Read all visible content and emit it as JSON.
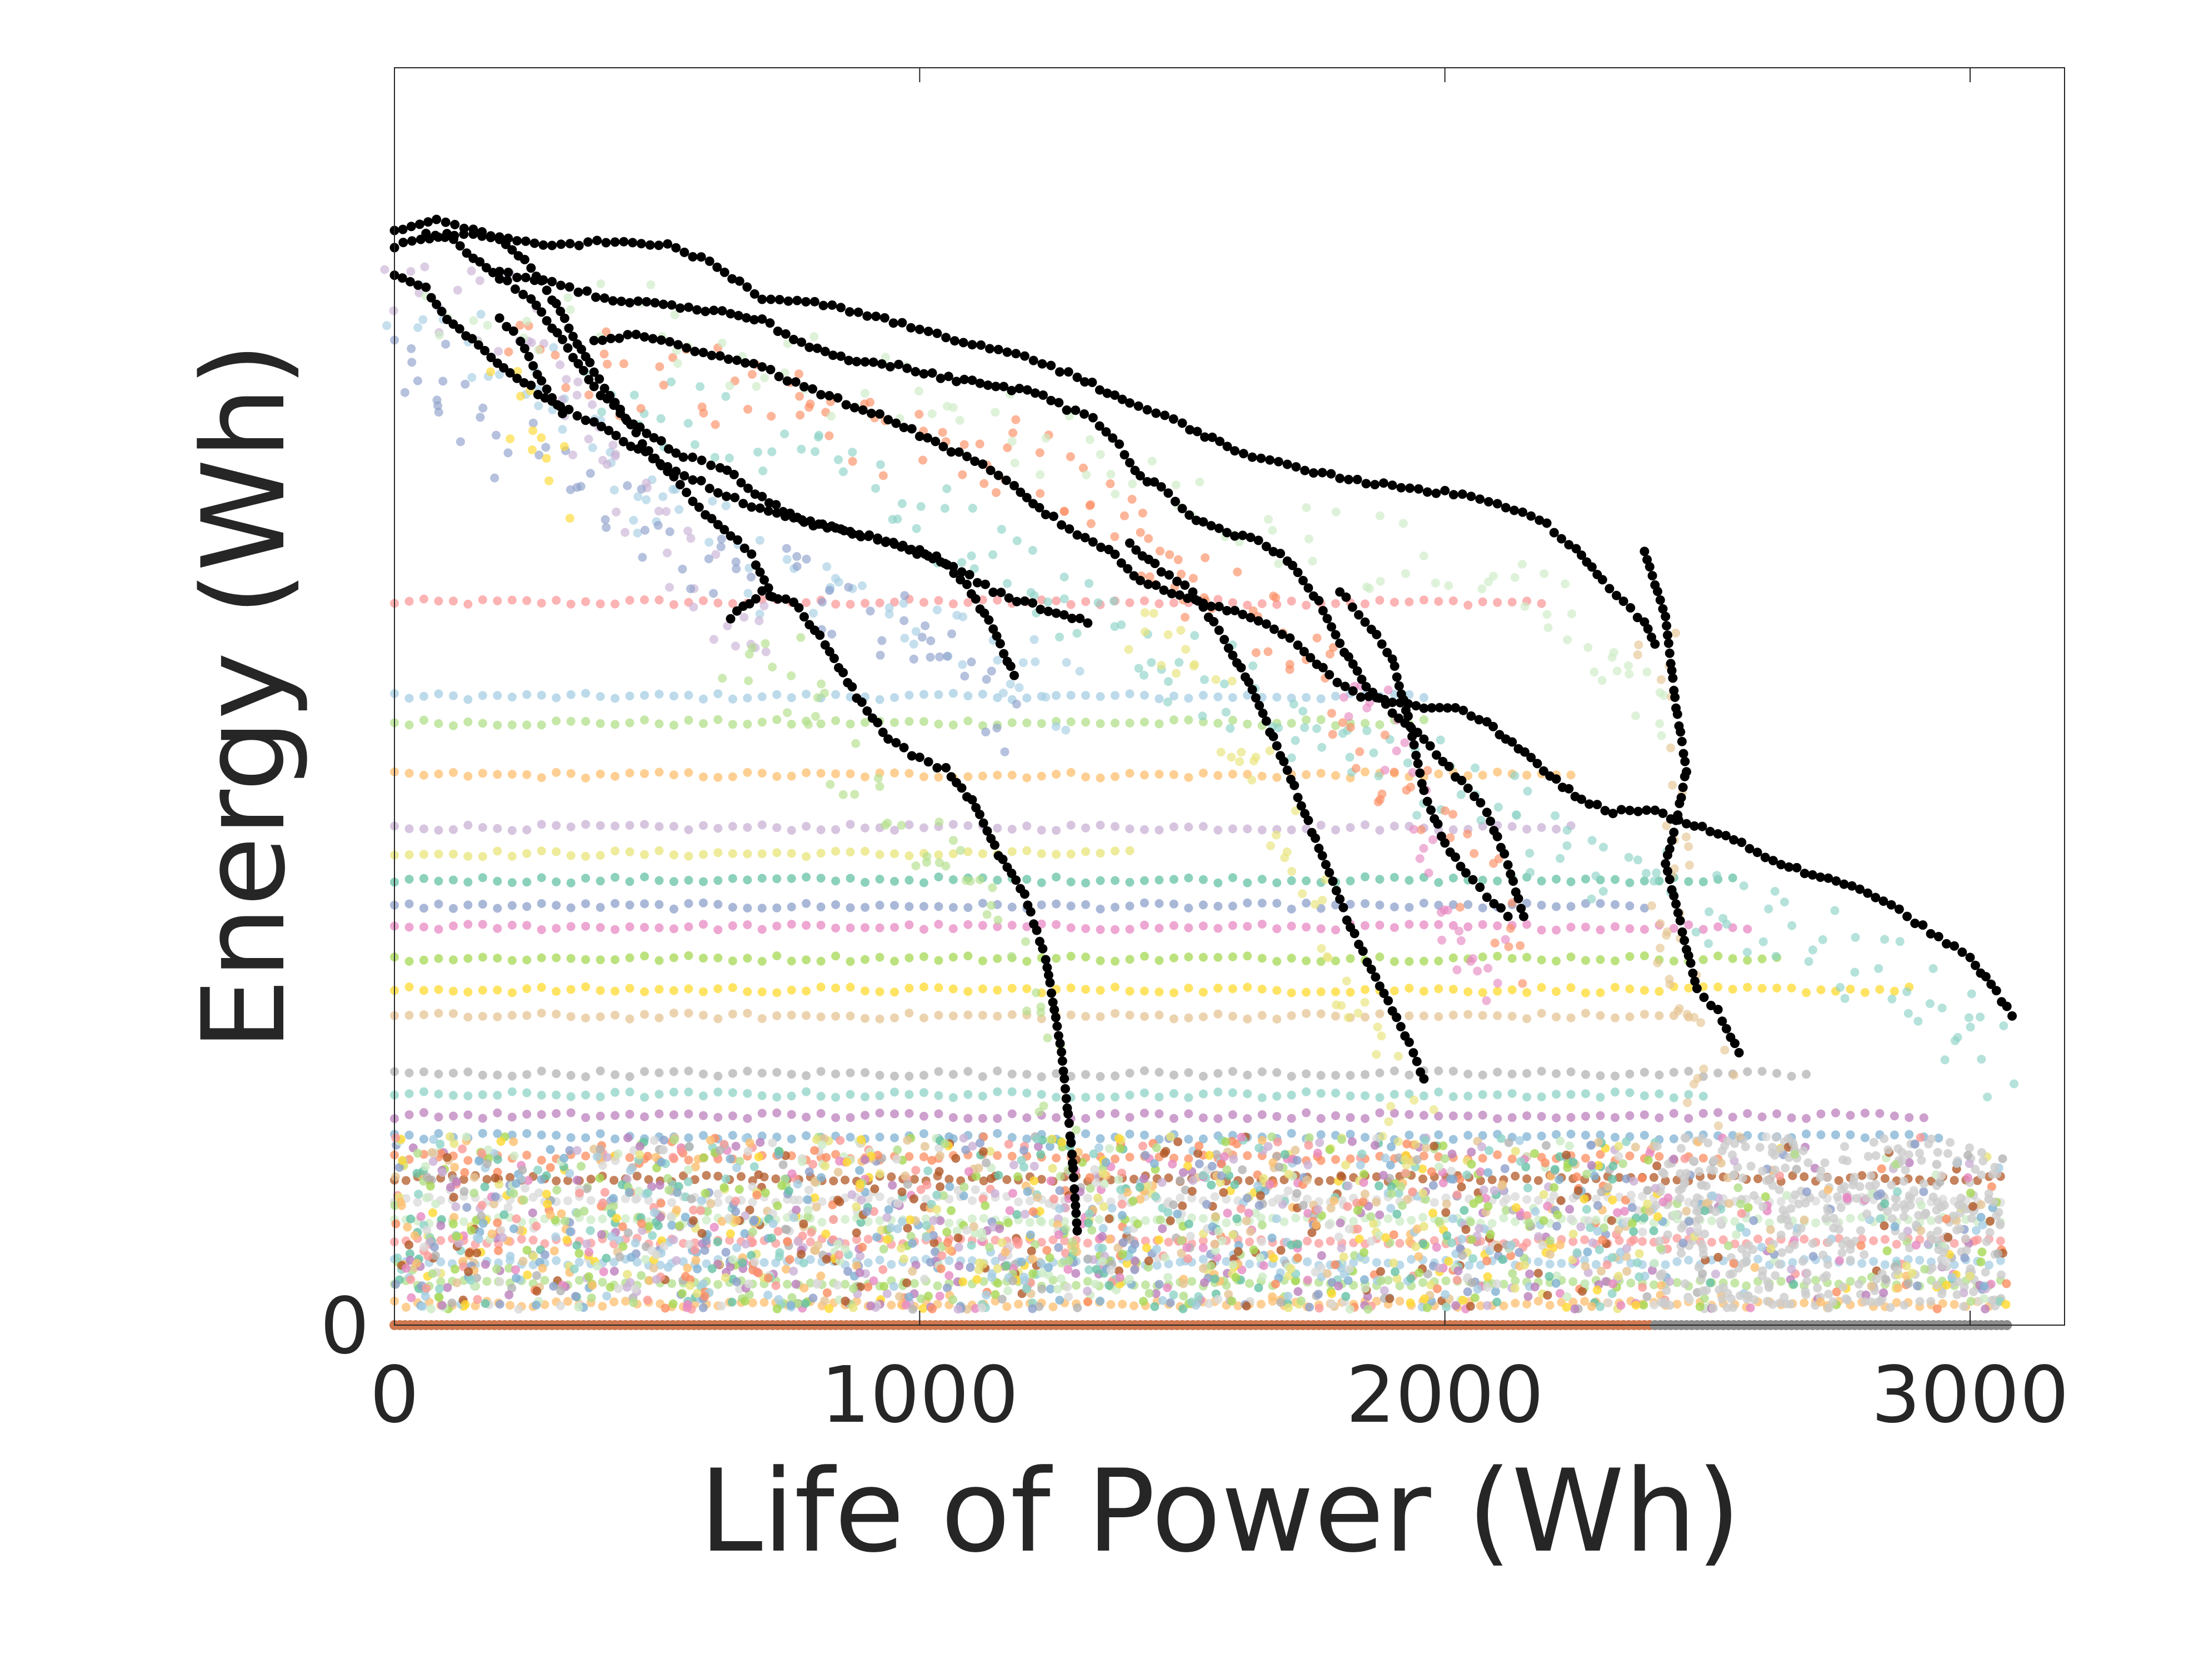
{
  "chart_data": {
    "type": "scatter",
    "title": "",
    "xlabel": "Life of Power  (Wh)",
    "ylabel": "Energy (Wh)",
    "xlim": [
      0,
      3200
    ],
    "ylim": [
      0,
      2400
    ],
    "x_ticks": [
      {
        "value": 0,
        "label": "0"
      },
      {
        "value": 1000,
        "label": "1000"
      },
      {
        "value": 2000,
        "label": "2000"
      },
      {
        "value": 3000,
        "label": "3000"
      }
    ],
    "y_ticks": [
      {
        "value": 0,
        "label": "0"
      }
    ],
    "grid": false,
    "legend": "none",
    "colors": {
      "frame": "#262626",
      "highlight": "#000000",
      "baseline_orange": "#d07850",
      "baseline_gray": "#8c8c8c",
      "palette": [
        "#fb9a99",
        "#a6cee3",
        "#b2df8a",
        "#fdbf6f",
        "#cab2d6",
        "#e8e47a",
        "#66c2a5",
        "#8da0cb",
        "#e78ac3",
        "#a6d854",
        "#ffd92f",
        "#e5c494",
        "#b3b3b3",
        "#8dd3c7",
        "#bc80bd",
        "#80b1d3",
        "#fc8d62",
        "#b15928",
        "#d9d9d9",
        "#ccebc5"
      ]
    },
    "highlighted_series": [
      {
        "name": "degradation-curve-1",
        "points": [
          [
            0,
            2060
          ],
          [
            100,
            2080
          ],
          [
            200,
            2000
          ],
          [
            260,
            1960
          ],
          [
            320,
            1880
          ],
          [
            380,
            1790
          ],
          [
            430,
            1740
          ],
          [
            480,
            1700
          ],
          [
            550,
            1660
          ],
          [
            620,
            1640
          ],
          [
            700,
            1580
          ],
          [
            780,
            1530
          ],
          [
            850,
            1520
          ],
          [
            920,
            1500
          ],
          [
            1000,
            1480
          ],
          [
            1080,
            1440
          ],
          [
            1140,
            1400
          ],
          [
            1200,
            1380
          ],
          [
            1260,
            1360
          ],
          [
            1320,
            1340
          ]
        ]
      },
      {
        "name": "degradation-curve-2",
        "points": [
          [
            0,
            2090
          ],
          [
            80,
            2110
          ],
          [
            150,
            2090
          ],
          [
            200,
            2070
          ],
          [
            260,
            2020
          ],
          [
            300,
            1960
          ],
          [
            340,
            1890
          ],
          [
            380,
            1820
          ],
          [
            420,
            1760
          ],
          [
            460,
            1700
          ],
          [
            520,
            1630
          ],
          [
            580,
            1560
          ],
          [
            640,
            1510
          ],
          [
            680,
            1470
          ],
          [
            720,
            1390
          ]
        ]
      },
      {
        "name": "degradation-curve-3",
        "points": [
          [
            0,
            2000
          ],
          [
            60,
            1980
          ],
          [
            100,
            1920
          ],
          [
            160,
            1870
          ],
          [
            220,
            1820
          ],
          [
            300,
            1760
          ],
          [
            380,
            1720
          ],
          [
            450,
            1680
          ],
          [
            520,
            1640
          ],
          [
            600,
            1600
          ],
          [
            680,
            1560
          ],
          [
            760,
            1540
          ],
          [
            840,
            1520
          ],
          [
            920,
            1500
          ],
          [
            980,
            1480
          ],
          [
            1040,
            1460
          ],
          [
            1090,
            1410
          ],
          [
            1140,
            1330
          ],
          [
            1180,
            1240
          ]
        ]
      },
      {
        "name": "degradation-curve-4",
        "points": [
          [
            200,
            1920
          ],
          [
            240,
            1880
          ],
          [
            280,
            1800
          ],
          [
            320,
            1740
          ]
        ]
      },
      {
        "name": "degradation-curve-5",
        "points": [
          [
            380,
            1880
          ],
          [
            460,
            1890
          ],
          [
            540,
            1870
          ],
          [
            620,
            1850
          ],
          [
            700,
            1830
          ],
          [
            780,
            1790
          ],
          [
            860,
            1760
          ],
          [
            940,
            1730
          ],
          [
            1000,
            1700
          ],
          [
            1060,
            1670
          ],
          [
            1120,
            1640
          ],
          [
            1180,
            1600
          ],
          [
            1240,
            1550
          ],
          [
            1300,
            1510
          ],
          [
            1360,
            1480
          ],
          [
            1420,
            1420
          ],
          [
            1480,
            1400
          ],
          [
            1540,
            1380
          ],
          [
            1600,
            1360
          ],
          [
            1660,
            1340
          ],
          [
            1720,
            1300
          ],
          [
            1780,
            1240
          ],
          [
            1840,
            1200
          ],
          [
            1900,
            1190
          ],
          [
            1960,
            1180
          ],
          [
            2020,
            1180
          ],
          [
            2080,
            1150
          ],
          [
            2140,
            1100
          ],
          [
            2200,
            1050
          ],
          [
            2260,
            1000
          ],
          [
            2320,
            980
          ],
          [
            2400,
            980
          ],
          [
            2460,
            960
          ],
          [
            2520,
            940
          ],
          [
            2580,
            910
          ],
          [
            2640,
            880
          ],
          [
            2700,
            860
          ],
          [
            2760,
            840
          ],
          [
            2820,
            820
          ],
          [
            2880,
            780
          ],
          [
            2940,
            740
          ],
          [
            3000,
            700
          ],
          [
            3040,
            650
          ],
          [
            3080,
            590
          ]
        ]
      },
      {
        "name": "degradation-curve-6",
        "points": [
          [
            200,
            2010
          ],
          [
            300,
            1990
          ],
          [
            400,
            1960
          ],
          [
            480,
            1950
          ],
          [
            560,
            1940
          ],
          [
            640,
            1930
          ],
          [
            700,
            1920
          ],
          [
            760,
            1880
          ],
          [
            820,
            1860
          ],
          [
            880,
            1840
          ],
          [
            960,
            1830
          ],
          [
            1040,
            1810
          ],
          [
            1100,
            1800
          ],
          [
            1160,
            1790
          ],
          [
            1220,
            1780
          ],
          [
            1280,
            1750
          ],
          [
            1330,
            1730
          ],
          [
            1380,
            1680
          ],
          [
            1420,
            1620
          ],
          [
            1460,
            1600
          ],
          [
            1500,
            1560
          ],
          [
            1540,
            1530
          ],
          [
            1600,
            1510
          ],
          [
            1660,
            1490
          ],
          [
            1700,
            1460
          ],
          [
            1760,
            1380
          ],
          [
            1800,
            1300
          ],
          [
            1850,
            1220
          ],
          [
            1900,
            1170
          ],
          [
            1960,
            1120
          ],
          [
            2020,
            1050
          ],
          [
            2080,
            980
          ],
          [
            2120,
            880
          ],
          [
            2150,
            780
          ]
        ]
      },
      {
        "name": "degradation-curve-7",
        "points": [
          [
            60,
            2080
          ],
          [
            150,
            2080
          ],
          [
            300,
            2060
          ],
          [
            420,
            2070
          ],
          [
            520,
            2060
          ],
          [
            600,
            2030
          ],
          [
            700,
            1960
          ],
          [
            800,
            1950
          ],
          [
            900,
            1930
          ],
          [
            1000,
            1900
          ],
          [
            1100,
            1870
          ],
          [
            1200,
            1850
          ],
          [
            1300,
            1810
          ],
          [
            1400,
            1760
          ],
          [
            1500,
            1720
          ],
          [
            1600,
            1670
          ],
          [
            1700,
            1640
          ],
          [
            1800,
            1620
          ],
          [
            1900,
            1600
          ],
          [
            2000,
            1590
          ],
          [
            2100,
            1570
          ],
          [
            2180,
            1540
          ],
          [
            2250,
            1480
          ],
          [
            2300,
            1420
          ],
          [
            2340,
            1380
          ],
          [
            2380,
            1340
          ],
          [
            2400,
            1300
          ]
        ]
      },
      {
        "name": "degradation-curve-8",
        "points": [
          [
            640,
            1350
          ],
          [
            700,
            1400
          ],
          [
            760,
            1380
          ],
          [
            820,
            1300
          ],
          [
            880,
            1200
          ],
          [
            940,
            1120
          ],
          [
            1000,
            1080
          ],
          [
            1050,
            1060
          ],
          [
            1100,
            1000
          ],
          [
            1150,
            900
          ],
          [
            1200,
            820
          ],
          [
            1240,
            700
          ],
          [
            1270,
            520
          ],
          [
            1290,
            330
          ],
          [
            1300,
            180
          ]
        ]
      },
      {
        "name": "degradation-curve-9",
        "points": [
          [
            1400,
            1490
          ],
          [
            1460,
            1440
          ],
          [
            1520,
            1400
          ],
          [
            1580,
            1310
          ],
          [
            1620,
            1240
          ],
          [
            1660,
            1150
          ],
          [
            1700,
            1060
          ],
          [
            1740,
            960
          ],
          [
            1780,
            860
          ],
          [
            1820,
            760
          ],
          [
            1860,
            680
          ],
          [
            1900,
            600
          ],
          [
            1940,
            520
          ],
          [
            1960,
            470
          ]
        ]
      },
      {
        "name": "degradation-curve-10",
        "points": [
          [
            1800,
            1400
          ],
          [
            1860,
            1330
          ],
          [
            1900,
            1270
          ],
          [
            1930,
            1160
          ],
          [
            1960,
            1020
          ],
          [
            2000,
            920
          ],
          [
            2040,
            860
          ],
          [
            2080,
            820
          ],
          [
            2120,
            780
          ]
        ]
      },
      {
        "name": "degradation-curve-11",
        "points": [
          [
            2380,
            1480
          ],
          [
            2420,
            1350
          ],
          [
            2440,
            1180
          ],
          [
            2460,
            1060
          ],
          [
            2440,
            960
          ],
          [
            2420,
            880
          ],
          [
            2440,
            800
          ],
          [
            2460,
            720
          ],
          [
            2480,
            640
          ],
          [
            2520,
            600
          ],
          [
            2560,
            520
          ]
        ]
      }
    ],
    "background_bands_y": [
      1380,
      1200,
      1150,
      1050,
      950,
      900,
      850,
      800,
      760,
      700,
      640,
      590,
      480,
      440,
      400,
      360,
      320,
      280,
      240,
      200,
      160,
      120,
      80,
      40
    ],
    "baseline_series": [
      {
        "name": "baseline-orange",
        "y": 0,
        "x_range": [
          0,
          2400
        ]
      },
      {
        "name": "baseline-gray",
        "y": 0,
        "x_range": [
          2400,
          3070
        ]
      }
    ]
  }
}
